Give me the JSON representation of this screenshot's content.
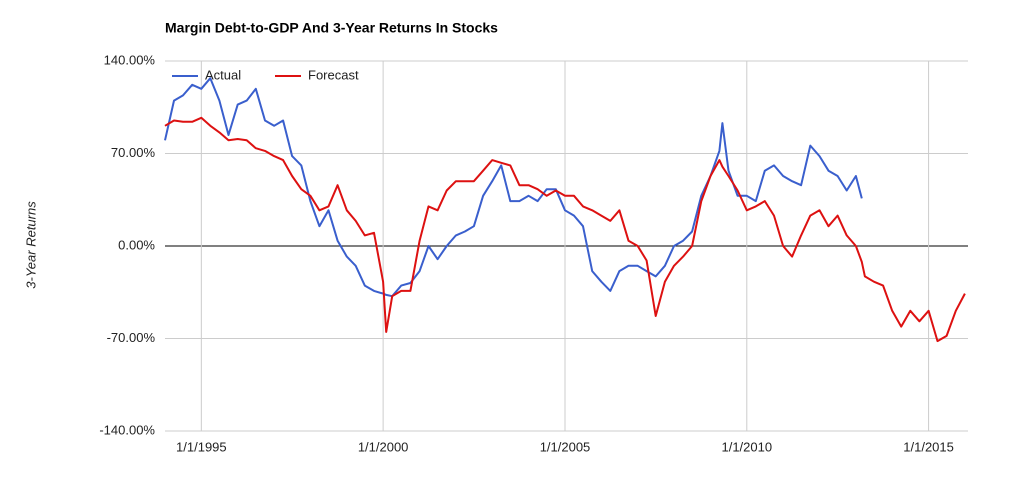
{
  "chart_data": {
    "type": "line",
    "title": "Margin Debt-to-GDP And 3-Year Returns In Stocks",
    "y_label": "3-Year Returns",
    "legend": "top-left",
    "grid": true,
    "xlim": [
      "1/1/1994",
      "2/1/2016"
    ],
    "xticks": [
      "1/1/1995",
      "1/1/2000",
      "1/1/2005",
      "1/1/2010",
      "1/1/2015"
    ],
    "ylim": [
      -140,
      140
    ],
    "yticks": [
      {
        "value": -140,
        "label": "-140.00%"
      },
      {
        "value": -70,
        "label": "-70.00%"
      },
      {
        "value": 0,
        "label": "0.00%"
      },
      {
        "value": 70,
        "label": "70.00%"
      },
      {
        "value": 140,
        "label": "140.00%"
      }
    ],
    "x": [
      "1/1/1994",
      "4/1/1994",
      "7/1/1994",
      "10/1/1994",
      "1/1/1995",
      "4/1/1995",
      "7/1/1995",
      "10/1/1995",
      "1/1/1996",
      "4/1/1996",
      "7/1/1996",
      "10/1/1996",
      "1/1/1997",
      "4/1/1997",
      "7/1/1997",
      "10/1/1997",
      "1/1/1998",
      "4/1/1998",
      "7/1/1998",
      "10/1/1998",
      "1/1/1999",
      "4/1/1999",
      "7/1/1999",
      "10/1/1999",
      "1/1/2000",
      "2/1/2000",
      "4/1/2000",
      "7/1/2000",
      "10/1/2000",
      "1/1/2001",
      "4/1/2001",
      "7/1/2001",
      "10/1/2001",
      "1/1/2002",
      "4/1/2002",
      "7/1/2002",
      "10/1/2002",
      "1/1/2003",
      "4/1/2003",
      "7/1/2003",
      "10/1/2003",
      "1/1/2004",
      "4/1/2004",
      "7/1/2004",
      "10/1/2004",
      "1/1/2005",
      "4/1/2005",
      "7/1/2005",
      "10/1/2005",
      "1/1/2006",
      "4/1/2006",
      "7/1/2006",
      "10/1/2006",
      "1/1/2007",
      "4/1/2007",
      "7/1/2007",
      "10/1/2007",
      "1/1/2008",
      "4/1/2008",
      "7/1/2008",
      "10/1/2008",
      "1/1/2009",
      "4/1/2009",
      "5/1/2009",
      "7/1/2009",
      "10/1/2009",
      "1/1/2010",
      "4/1/2010",
      "7/1/2010",
      "10/1/2010",
      "1/1/2011",
      "4/1/2011",
      "7/1/2011",
      "10/1/2011",
      "1/1/2012",
      "4/1/2012",
      "7/1/2012",
      "10/1/2012",
      "1/1/2013",
      "3/1/2013",
      "4/1/2013",
      "7/1/2013",
      "10/1/2013",
      "1/1/2014",
      "4/1/2014",
      "7/1/2014",
      "10/1/2014",
      "1/1/2015",
      "4/1/2015",
      "7/1/2015",
      "10/1/2015",
      "1/1/2016"
    ],
    "series": [
      {
        "name": "Actual",
        "color": "#3a5fcd",
        "values": [
          80,
          110,
          114,
          122,
          119,
          127,
          110,
          84,
          107,
          110,
          119,
          95,
          91,
          95,
          68,
          61,
          34,
          15,
          27,
          4,
          -8,
          -15,
          -30,
          -34,
          -36,
          -37,
          -38,
          -30,
          -28,
          -19,
          0,
          -10,
          0,
          8,
          11,
          15,
          38,
          49,
          61,
          34,
          34,
          38,
          34,
          43,
          43,
          27,
          23,
          15,
          -19,
          -27,
          -34,
          -19,
          -15,
          -15,
          -19,
          -23,
          -15,
          0,
          4,
          11,
          38,
          53,
          72,
          93,
          57,
          38,
          38,
          34,
          57,
          61,
          53,
          49,
          46,
          76,
          68,
          57,
          53,
          42,
          53,
          36,
          null,
          null,
          null,
          null,
          null,
          null,
          null,
          null,
          null,
          null,
          null,
          null
        ]
      },
      {
        "name": "Forecast",
        "color": "#dd1111",
        "values": [
          91,
          95,
          94,
          94,
          97,
          91,
          86,
          80,
          81,
          80,
          74,
          72,
          68,
          65,
          53,
          43,
          38,
          27,
          30,
          46,
          27,
          19,
          8,
          10,
          -27,
          -65,
          -38,
          -34,
          -34,
          4,
          30,
          27,
          42,
          49,
          49,
          49,
          57,
          65,
          63,
          61,
          46,
          46,
          43,
          38,
          42,
          38,
          38,
          30,
          27,
          23,
          19,
          27,
          4,
          0,
          -11,
          -53,
          -27,
          -15,
          -8,
          0,
          34,
          53,
          65,
          60,
          53,
          42,
          27,
          30,
          34,
          23,
          0,
          -8,
          8,
          23,
          27,
          15,
          23,
          8,
          0,
          -12,
          -23,
          -27,
          -30,
          -49,
          -61,
          -49,
          -57,
          -49,
          -72,
          -68,
          -49,
          -36
        ]
      }
    ]
  }
}
